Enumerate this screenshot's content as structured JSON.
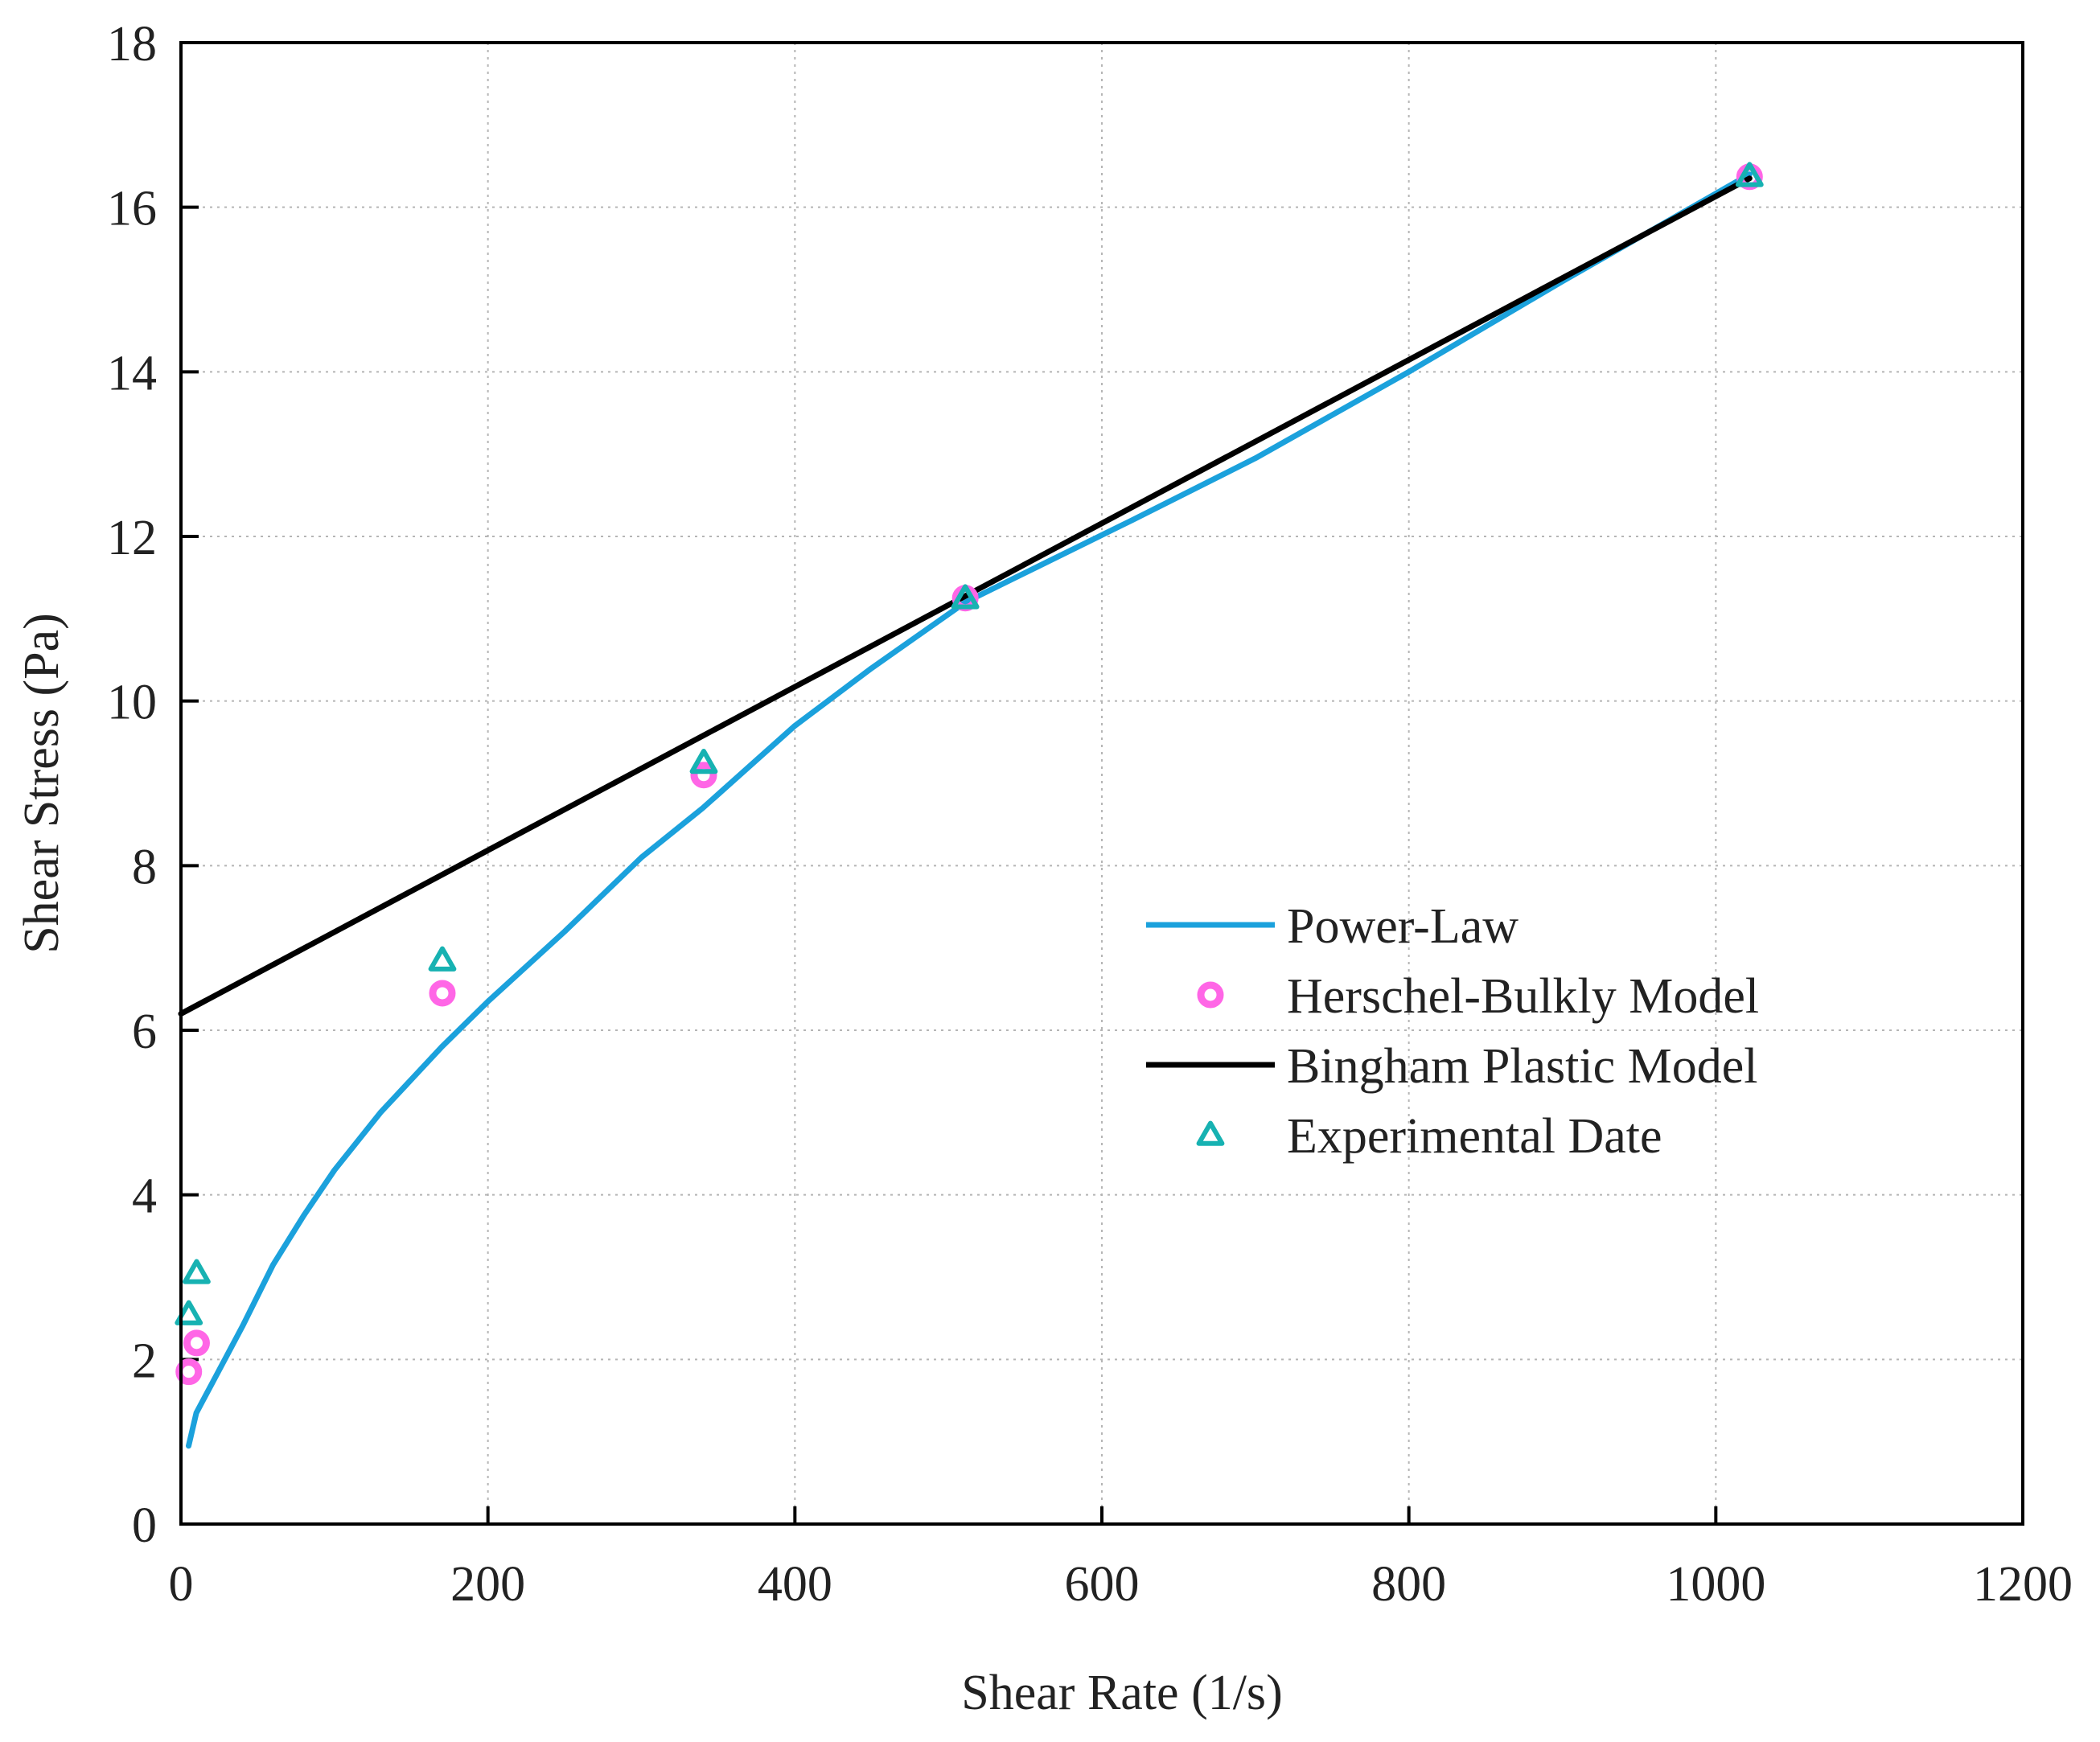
{
  "chart_data": {
    "type": "line",
    "title": "",
    "xlabel": "Shear Rate (1/s)",
    "ylabel": "Shear Stress (Pa)",
    "xlim": [
      0,
      1200
    ],
    "ylim": [
      0,
      18
    ],
    "xticks": [
      0,
      200,
      400,
      600,
      800,
      1000,
      1200
    ],
    "yticks": [
      0,
      2,
      4,
      6,
      8,
      10,
      12,
      14,
      16,
      18
    ],
    "grid": true,
    "legend_position": "center-right",
    "series": [
      {
        "name": "Power-Law",
        "kind": "line",
        "color": "#1BA1DC",
        "x": [
          5,
          10,
          20,
          40,
          60,
          80,
          100,
          130,
          170,
          200,
          250,
          300,
          340,
          400,
          450,
          511,
          560,
          620,
          700,
          800,
          900,
          1022
        ],
        "y": [
          0.95,
          1.35,
          1.7,
          2.4,
          3.15,
          3.75,
          4.3,
          5.0,
          5.8,
          6.35,
          7.2,
          8.1,
          8.7,
          9.7,
          10.4,
          11.2,
          11.65,
          12.2,
          12.95,
          14.0,
          15.1,
          16.4
        ]
      },
      {
        "name": "Herschel-Bulkly Model",
        "kind": "scatter",
        "marker": "circle",
        "color": "#FF66E6",
        "x": [
          5.1,
          10.2,
          170.3,
          340.6,
          511,
          1022
        ],
        "y": [
          1.85,
          2.2,
          6.45,
          9.1,
          11.25,
          16.37
        ]
      },
      {
        "name": "Bingham Plastic Model",
        "kind": "line",
        "color": "#000000",
        "x": [
          0,
          1022
        ],
        "y": [
          6.2,
          16.35
        ]
      },
      {
        "name": "Experimental Date",
        "kind": "scatter",
        "marker": "triangle",
        "color": "#17B2B2",
        "x": [
          5.1,
          10.2,
          170.3,
          340.6,
          511,
          1022
        ],
        "y": [
          2.55,
          3.05,
          6.85,
          9.25,
          11.25,
          16.38
        ]
      }
    ]
  }
}
